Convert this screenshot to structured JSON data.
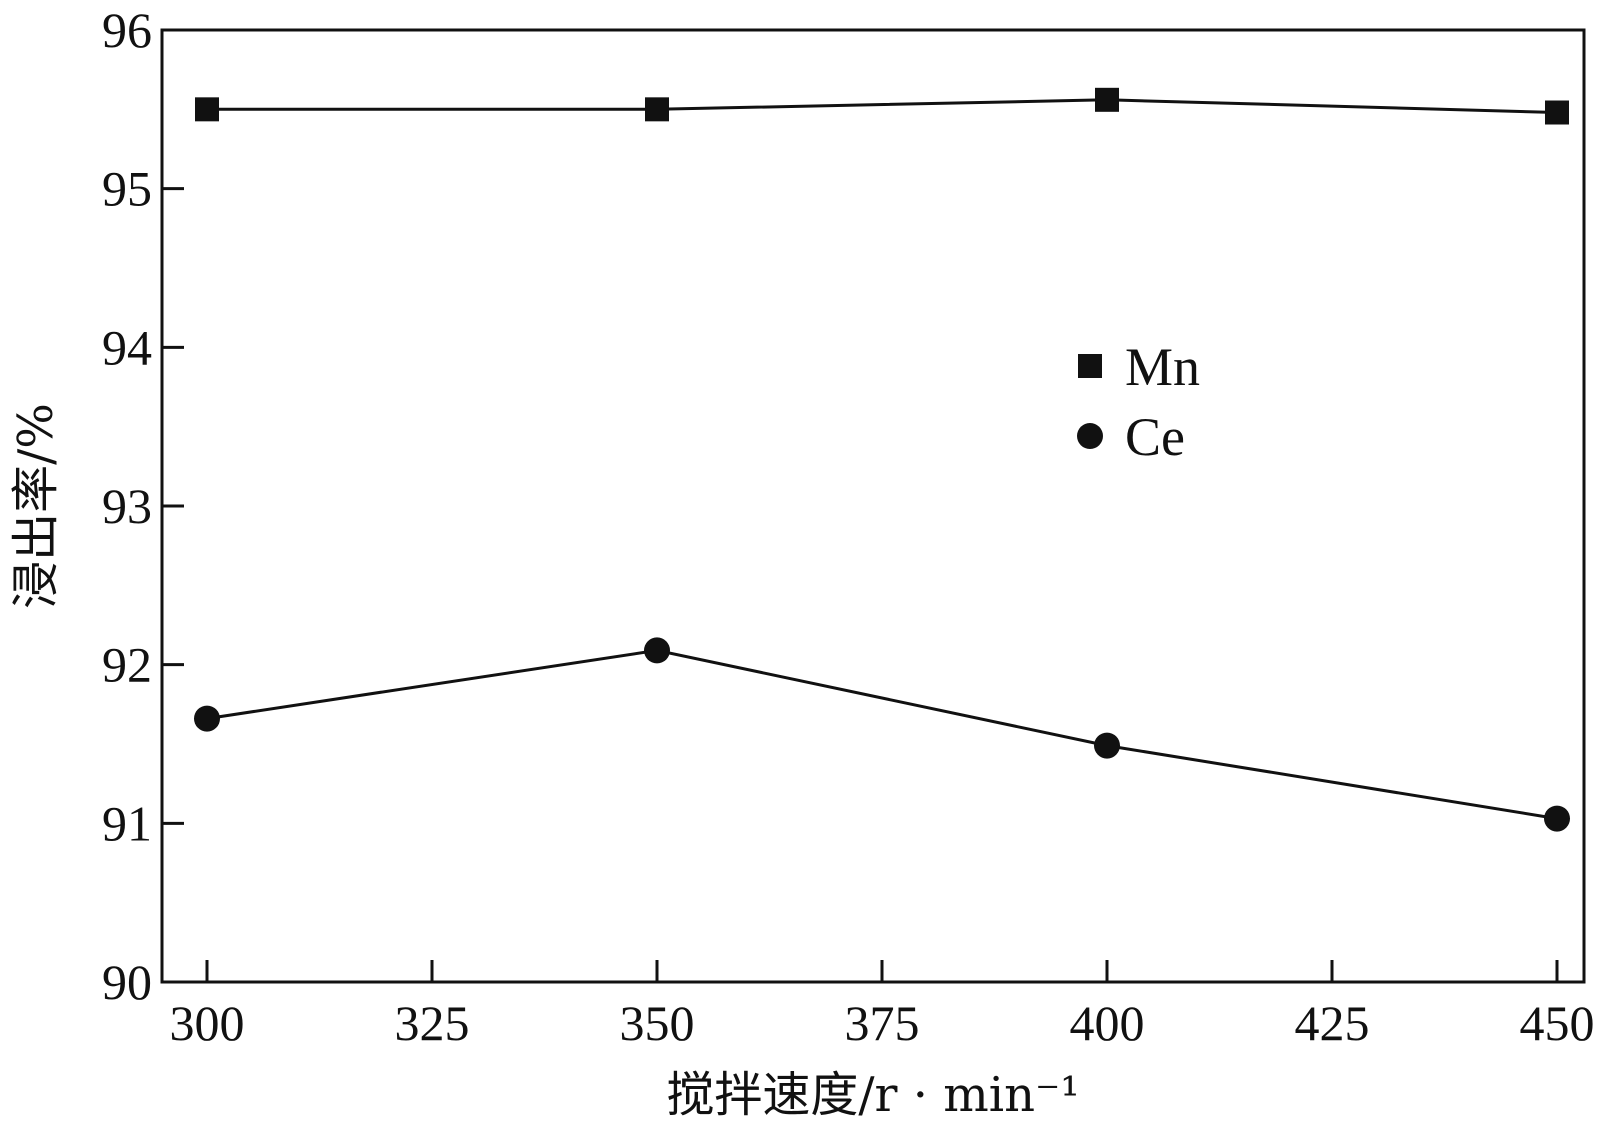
{
  "chart_data": {
    "type": "line",
    "x": [
      300,
      350,
      400,
      450
    ],
    "series": [
      {
        "name": "Mn",
        "marker": "square",
        "values": [
          95.5,
          95.5,
          95.56,
          95.48
        ]
      },
      {
        "name": "Ce",
        "marker": "circle",
        "values": [
          91.66,
          92.09,
          91.49,
          91.03
        ]
      }
    ],
    "xlabel": "搅拌速度/r · min⁻¹",
    "ylabel": "浸出率/%",
    "xlim": [
      295,
      453
    ],
    "ylim": [
      90,
      96
    ],
    "xticks": [
      300,
      325,
      350,
      375,
      400,
      425,
      450
    ],
    "yticks": [
      90,
      91,
      92,
      93,
      94,
      95,
      96
    ],
    "grid": false,
    "legend_position": "center-right",
    "colors": {
      "line": "#111111",
      "marker": "#111111"
    }
  }
}
